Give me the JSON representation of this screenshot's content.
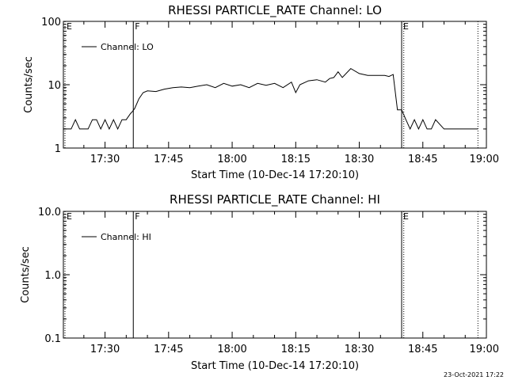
{
  "chart_data": [
    {
      "type": "line",
      "title": "RHESSI PARTICLE_RATE Channel: LO",
      "xlabel": "Start Time (10-Dec-14 17:20:10)",
      "ylabel": "Counts/sec",
      "y_scale": "log",
      "ylim": [
        1,
        100
      ],
      "y_ticks": [
        "1",
        "10",
        "100"
      ],
      "xlim": [
        "17:20:10",
        "19:00"
      ],
      "x_ticks": [
        "17:30",
        "17:45",
        "18:00",
        "18:15",
        "18:30",
        "18:45",
        "19:00"
      ],
      "legend": {
        "position": "top-left",
        "entries": [
          "Channel: LO"
        ]
      },
      "markers": [
        {
          "label": "E",
          "time": "17:20:10",
          "style": "dotted"
        },
        {
          "label": "F",
          "time": "17:36:40",
          "style": "solid"
        },
        {
          "label": "E",
          "time": "18:40:00",
          "style": "solid"
        },
        {
          "label": "",
          "time": "18:40:30",
          "style": "dotted"
        },
        {
          "label": "",
          "time": "18:58:00",
          "style": "dotted"
        }
      ],
      "series": [
        {
          "name": "Channel: LO",
          "x": [
            "17:20:10",
            "17:21",
            "17:22",
            "17:23",
            "17:24",
            "17:25",
            "17:26",
            "17:27",
            "17:28",
            "17:29",
            "17:30",
            "17:31",
            "17:32",
            "17:33",
            "17:34",
            "17:35",
            "17:36",
            "17:36:30",
            "17:37",
            "17:38",
            "17:39",
            "17:40",
            "17:42",
            "17:44",
            "17:46",
            "17:48",
            "17:50",
            "17:52",
            "17:54",
            "17:56",
            "17:58",
            "18:00",
            "18:02",
            "18:04",
            "18:06",
            "18:08",
            "18:10",
            "18:12",
            "18:14",
            "18:15",
            "18:16",
            "18:18",
            "18:20",
            "18:22",
            "18:23",
            "18:24",
            "18:25",
            "18:26",
            "18:28",
            "18:30",
            "18:32",
            "18:34",
            "18:36",
            "18:37",
            "18:38",
            "18:39",
            "18:40",
            "18:41",
            "18:42",
            "18:43",
            "18:44",
            "18:45",
            "18:46",
            "18:47",
            "18:48",
            "18:50",
            "18:52",
            "18:54",
            "18:56",
            "18:58"
          ],
          "y": [
            2.0,
            2.0,
            2.0,
            2.8,
            2.0,
            2.0,
            2.0,
            2.8,
            2.8,
            2.0,
            2.8,
            2.0,
            2.8,
            2.0,
            2.8,
            2.8,
            3.5,
            3.8,
            4.2,
            6.0,
            7.5,
            8.0,
            7.8,
            8.5,
            9.0,
            9.2,
            9.0,
            9.5,
            10.0,
            9.0,
            10.5,
            9.5,
            10.0,
            9.0,
            10.5,
            9.8,
            10.5,
            9.0,
            11.0,
            7.5,
            10.0,
            11.5,
            12.0,
            11.0,
            12.5,
            13.0,
            16.0,
            13.0,
            18.0,
            15.0,
            14.0,
            14.0,
            14.0,
            13.5,
            14.5,
            4.0,
            4.0,
            2.8,
            2.0,
            2.8,
            2.0,
            2.8,
            2.0,
            2.0,
            2.8,
            2.0,
            2.0,
            2.0,
            2.0,
            2.0
          ]
        }
      ]
    },
    {
      "type": "line",
      "title": "RHESSI PARTICLE_RATE Channel: HI",
      "xlabel": "Start Time (10-Dec-14 17:20:10)",
      "ylabel": "Counts/sec",
      "y_scale": "log",
      "ylim": [
        0.1,
        10.0
      ],
      "y_ticks": [
        "0.1",
        "1.0",
        "10.0"
      ],
      "xlim": [
        "17:20:10",
        "19:00"
      ],
      "x_ticks": [
        "17:30",
        "17:45",
        "18:00",
        "18:15",
        "18:30",
        "18:45",
        "19:00"
      ],
      "legend": {
        "position": "top-left",
        "entries": [
          "Channel: HI"
        ]
      },
      "markers": [
        {
          "label": "E",
          "time": "17:20:10",
          "style": "dotted"
        },
        {
          "label": "F",
          "time": "17:36:40",
          "style": "solid"
        },
        {
          "label": "E",
          "time": "18:40:00",
          "style": "solid"
        },
        {
          "label": "",
          "time": "18:40:30",
          "style": "dotted"
        },
        {
          "label": "",
          "time": "18:58:00",
          "style": "dotted"
        }
      ],
      "series": [
        {
          "name": "Channel: HI",
          "x": [],
          "y": []
        }
      ]
    }
  ],
  "footer": {
    "timestamp": "23-Oct-2021 17:22"
  }
}
